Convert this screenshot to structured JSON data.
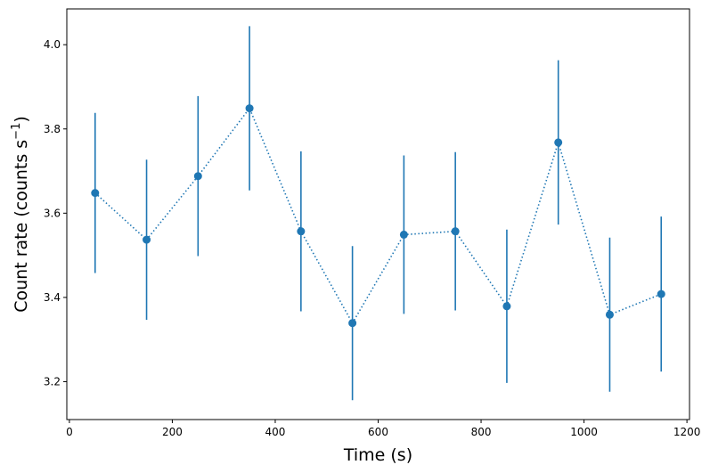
{
  "chart_data": {
    "type": "scatter",
    "xlabel": "Time (s)",
    "ylabel": "Count rate (counts s",
    "ylabel_superscript": "−1",
    "ylabel_suffix": ")",
    "xlim": [
      -5,
      1205
    ],
    "ylim": [
      3.11,
      4.085
    ],
    "x_ticks": [
      0,
      200,
      400,
      600,
      800,
      1000,
      1200
    ],
    "y_ticks": [
      3.2,
      3.4,
      3.6,
      3.8,
      4.0
    ],
    "x_tick_labels": [
      "0",
      "200",
      "400",
      "600",
      "800",
      "1000",
      "1200"
    ],
    "y_tick_labels": [
      "3.2",
      "3.4",
      "3.6",
      "3.8",
      "4.0"
    ],
    "grid": false,
    "line_style": "dotted",
    "color": "#1f77b4",
    "series": [
      {
        "x": [
          50,
          150,
          250,
          350,
          450,
          550,
          650,
          750,
          850,
          950,
          1050,
          1150
        ],
        "y": [
          3.648,
          3.537,
          3.688,
          3.849,
          3.557,
          3.339,
          3.549,
          3.557,
          3.379,
          3.768,
          3.359,
          3.408
        ],
        "yerr": [
          0.19,
          0.19,
          0.19,
          0.195,
          0.19,
          0.183,
          0.188,
          0.188,
          0.182,
          0.195,
          0.183,
          0.184
        ]
      }
    ]
  }
}
